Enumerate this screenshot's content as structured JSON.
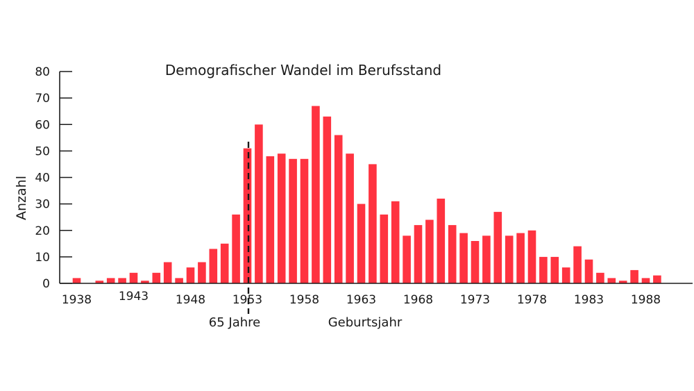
{
  "chart_data": {
    "type": "bar",
    "title": "Demografischer Wandel im Berufsstand",
    "xlabel": "Geburtsjahr",
    "ylabel": "Anzahl",
    "ylim": [
      0,
      80
    ],
    "yticks": [
      "0",
      "10",
      "20",
      "30",
      "40",
      "50",
      "60",
      "70",
      "80"
    ],
    "xticks": [
      "1938",
      "1943",
      "1948",
      "1953",
      "1958",
      "1963",
      "1968",
      "1973",
      "1978",
      "1983",
      "1988"
    ],
    "bar_color": "#ff3340",
    "grid": false,
    "categories": [
      1938,
      1939,
      1940,
      1941,
      1942,
      1943,
      1944,
      1945,
      1946,
      1947,
      1948,
      1949,
      1950,
      1951,
      1952,
      1953,
      1954,
      1955,
      1956,
      1957,
      1958,
      1959,
      1960,
      1961,
      1962,
      1963,
      1964,
      1965,
      1966,
      1967,
      1968,
      1969,
      1970,
      1971,
      1972,
      1973,
      1974,
      1975,
      1976,
      1977,
      1978,
      1979,
      1980,
      1981,
      1982,
      1983,
      1984,
      1985,
      1986,
      1987,
      1988,
      1989,
      1990
    ],
    "values": [
      2,
      0,
      1,
      2,
      2,
      4,
      1,
      4,
      8,
      2,
      6,
      8,
      13,
      15,
      26,
      51,
      60,
      48,
      49,
      47,
      47,
      67,
      63,
      56,
      49,
      30,
      45,
      26,
      31,
      18,
      22,
      24,
      32,
      22,
      19,
      16,
      18,
      27,
      18,
      19,
      20,
      10,
      10,
      6,
      14,
      9,
      4,
      2,
      1,
      5,
      2,
      3,
      0
    ],
    "annotation": {
      "x": 1953,
      "label": "65 Jahre"
    }
  }
}
